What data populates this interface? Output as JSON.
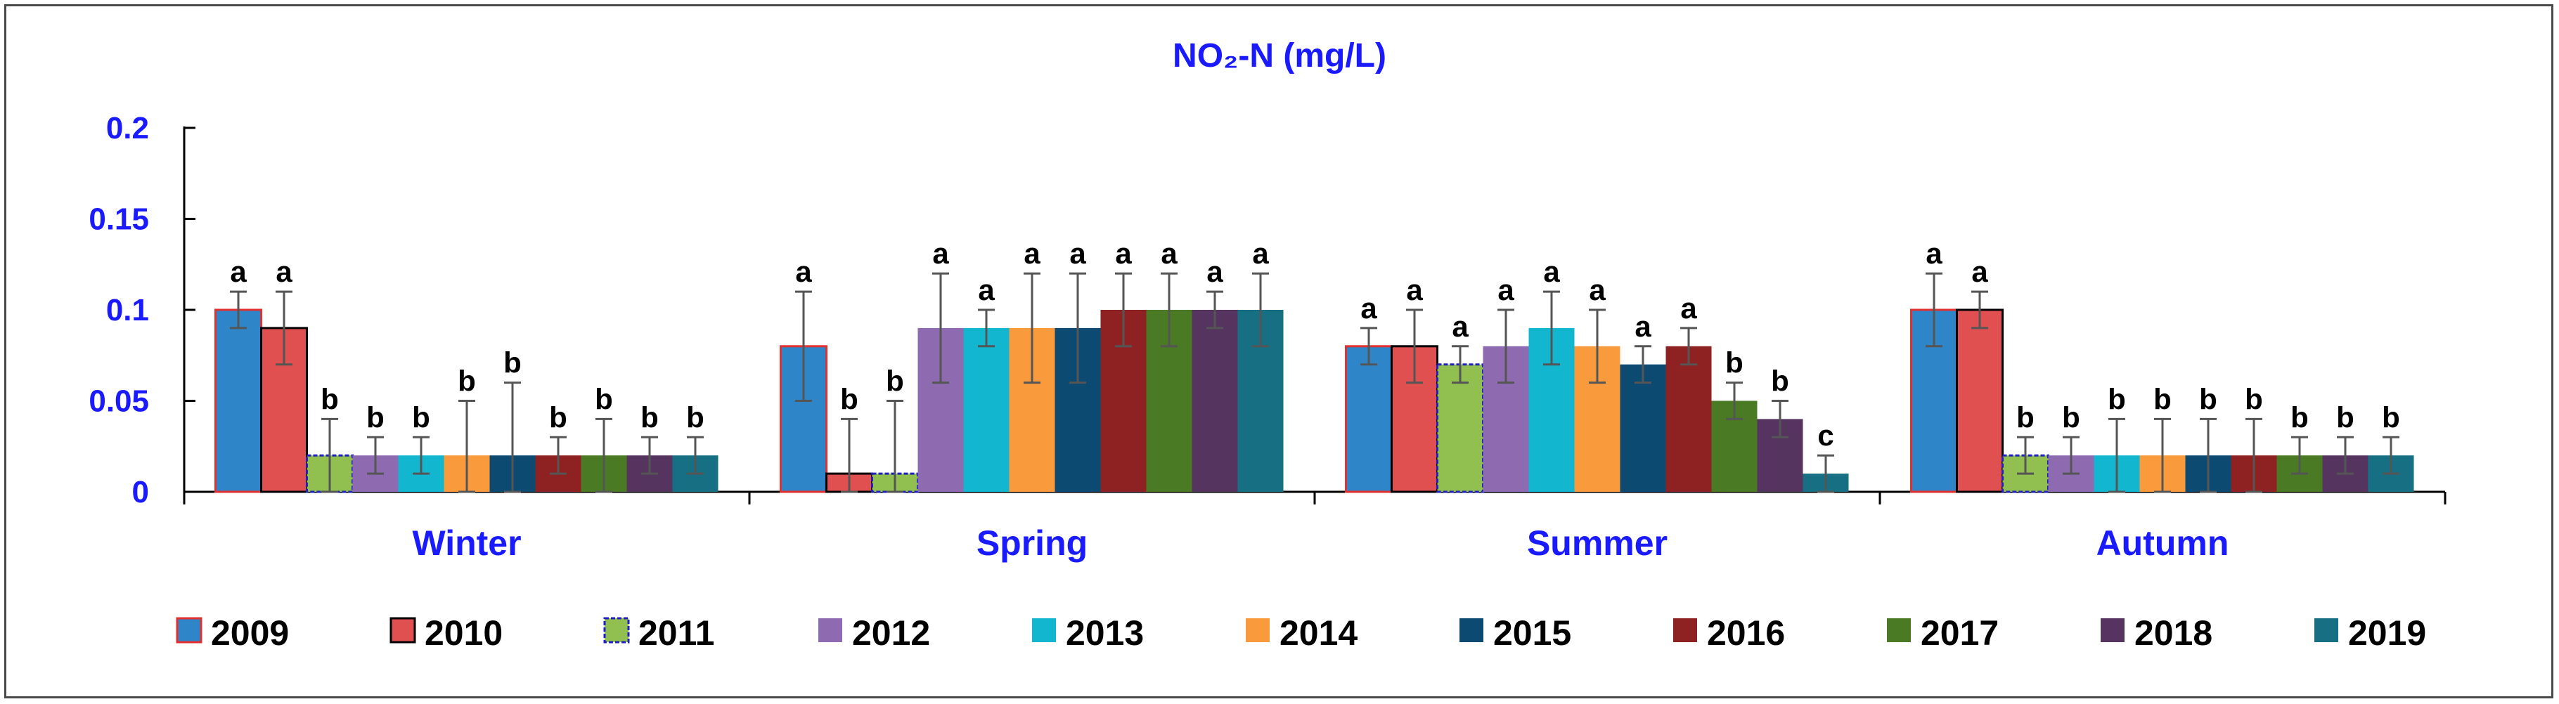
{
  "chart_data": {
    "type": "bar",
    "title": "NO₂-N  (mg/L)",
    "xlabel": "",
    "ylabel": "",
    "ylim": [
      0,
      0.2
    ],
    "yticks": [
      "0",
      "0.05",
      "0.1",
      "0.15",
      "0.2"
    ],
    "ytick_values": [
      0,
      0.05,
      0.1,
      0.15,
      0.2
    ],
    "categories": [
      "Winter",
      "Spring",
      "Summer",
      "Autumn"
    ],
    "legend_position": "bottom",
    "series": [
      {
        "name": "2009",
        "color": "#2e86c8",
        "outline": "#e03030",
        "values": [
          0.1,
          0.08,
          0.08,
          0.1
        ],
        "errors": [
          0.01,
          0.03,
          0.01,
          0.02
        ],
        "letters": [
          "a",
          "a",
          "a",
          "a"
        ]
      },
      {
        "name": "2010",
        "color": "#e05050",
        "outline": "#000000",
        "values": [
          0.09,
          0.01,
          0.08,
          0.1
        ],
        "errors": [
          0.02,
          0.03,
          0.02,
          0.01
        ],
        "letters": [
          "a",
          "b",
          "a",
          "a"
        ]
      },
      {
        "name": "2011",
        "color": "#92c050",
        "outline": "#2020c0",
        "values": [
          0.02,
          0.01,
          0.07,
          0.02
        ],
        "errors": [
          0.02,
          0.04,
          0.01,
          0.01
        ],
        "letters": [
          "b",
          "b",
          "a",
          "b"
        ]
      },
      {
        "name": "2012",
        "color": "#8e6bb0",
        "outline": "none",
        "values": [
          0.02,
          0.09,
          0.08,
          0.02
        ],
        "errors": [
          0.01,
          0.03,
          0.02,
          0.01
        ],
        "letters": [
          "b",
          "a",
          "a",
          "b"
        ]
      },
      {
        "name": "2013",
        "color": "#13b6cf",
        "outline": "none",
        "values": [
          0.02,
          0.09,
          0.09,
          0.02
        ],
        "errors": [
          0.01,
          0.01,
          0.02,
          0.02
        ],
        "letters": [
          "b",
          "a",
          "a",
          "b"
        ]
      },
      {
        "name": "2014",
        "color": "#f99a3c",
        "outline": "none",
        "values": [
          0.02,
          0.09,
          0.08,
          0.02
        ],
        "errors": [
          0.03,
          0.03,
          0.02,
          0.02
        ],
        "letters": [
          "b",
          "a",
          "a",
          "b"
        ]
      },
      {
        "name": "2015",
        "color": "#0d4a72",
        "outline": "none",
        "values": [
          0.02,
          0.09,
          0.07,
          0.02
        ],
        "errors": [
          0.04,
          0.03,
          0.01,
          0.02
        ],
        "letters": [
          "b",
          "a",
          "a",
          "b"
        ]
      },
      {
        "name": "2016",
        "color": "#8e2222",
        "outline": "none",
        "values": [
          0.02,
          0.1,
          0.08,
          0.02
        ],
        "errors": [
          0.01,
          0.02,
          0.01,
          0.02
        ],
        "letters": [
          "b",
          "a",
          "a",
          "b"
        ]
      },
      {
        "name": "2017",
        "color": "#4a7a24",
        "outline": "none",
        "values": [
          0.02,
          0.1,
          0.05,
          0.02
        ],
        "errors": [
          0.02,
          0.02,
          0.01,
          0.01
        ],
        "letters": [
          "b",
          "a",
          "b",
          "b"
        ]
      },
      {
        "name": "2018",
        "color": "#553560",
        "outline": "none",
        "values": [
          0.02,
          0.1,
          0.04,
          0.02
        ],
        "errors": [
          0.01,
          0.01,
          0.01,
          0.01
        ],
        "letters": [
          "b",
          "a",
          "b",
          "b"
        ]
      },
      {
        "name": "2019",
        "color": "#166f82",
        "outline": "none",
        "values": [
          0.02,
          0.1,
          0.01,
          0.02
        ],
        "errors": [
          0.01,
          0.02,
          0.01,
          0.01
        ],
        "letters": [
          "b",
          "a",
          "c",
          "b"
        ]
      }
    ]
  }
}
